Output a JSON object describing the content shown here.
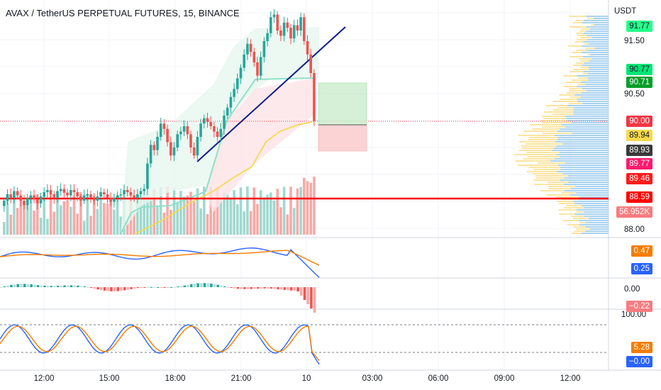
{
  "header": {
    "title": "AVAX / TetherUS PERPETUAL FUTURES, 15, BINANCE"
  },
  "axis": {
    "currency_label": "USDT",
    "price_ticks": [
      "91.50",
      "90.50",
      "88.00"
    ],
    "macd_ticks": [
      "0.00"
    ],
    "stoch_ticks": [
      "100.00"
    ],
    "time_ticks": [
      "12:00",
      "15:00",
      "18:00",
      "21:00",
      "10",
      "03:00",
      "06:00",
      "09:00",
      "12:00"
    ]
  },
  "price_labels": {
    "high": "91.77",
    "l1": "90.77",
    "l2": "90.71",
    "current": "90.00",
    "ma": "89.94",
    "l3": "89.93",
    "l4": "89.77",
    "l5": "89.46",
    "support": "88.59",
    "volume": "56.952K"
  },
  "indicator_labels": {
    "rsi_a": "0.47",
    "rsi_b": "0.25",
    "macd": "−0.22",
    "stoch_a": "5.28",
    "stoch_b": "−0.00"
  },
  "colors": {
    "up": "#26a69a",
    "down": "#ef5350",
    "support": "#ff0000",
    "trend": "#0d1a8a",
    "ma": "#f7d94c",
    "blue": "#2962ff",
    "orange": "#f57c00"
  },
  "chart_data": {
    "type": "candlestick",
    "symbol": "AVAX / TetherUS PERPETUAL FUTURES, 15, BINANCE",
    "x_ticks": [
      "12:00",
      "15:00",
      "18:00",
      "21:00",
      "10",
      "03:00",
      "06:00",
      "09:00",
      "12:00"
    ],
    "y_ticks": [
      91.5,
      90.5,
      88.0
    ],
    "ylim": [
      87.9,
      92.1
    ],
    "support_level": 88.59,
    "close": [
      88.5,
      88.62,
      88.55,
      88.68,
      88.6,
      88.5,
      88.42,
      88.55,
      88.6,
      88.52,
      88.45,
      88.58,
      88.66,
      88.7,
      88.62,
      88.55,
      88.68,
      88.72,
      88.65,
      88.6,
      88.7,
      88.66,
      88.58,
      88.5,
      88.6,
      88.62,
      88.55,
      88.5,
      88.58,
      88.66,
      88.62,
      88.55,
      88.48,
      88.55,
      88.6,
      88.62,
      88.7,
      88.66,
      88.6,
      88.55,
      88.62,
      88.68,
      88.72,
      89.2,
      89.55,
      89.45,
      89.7,
      89.95,
      89.85,
      89.6,
      89.35,
      89.5,
      89.75,
      89.8,
      89.9,
      89.75,
      89.5,
      89.35,
      89.7,
      89.95,
      90.05,
      89.98,
      89.9,
      89.8,
      89.7,
      89.85,
      90.1,
      90.25,
      90.45,
      90.6,
      90.8,
      91.0,
      91.25,
      91.45,
      91.3,
      91.1,
      90.85,
      91.2,
      91.5,
      91.65,
      91.95,
      92.0,
      91.7,
      91.6,
      91.85,
      91.75,
      91.55,
      91.8,
      91.7,
      91.95,
      91.5,
      91.25,
      90.9,
      90.0
    ]
  }
}
